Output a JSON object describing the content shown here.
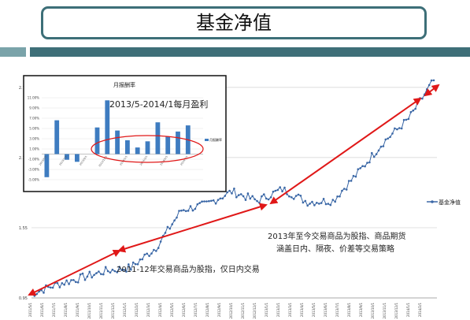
{
  "slide": {
    "title": "基金净值",
    "colors": {
      "frame": "#3d6f78",
      "deco_light": "#7aa3a9",
      "deco_dark": "#3e6f78",
      "series": "#3a67a6",
      "arrow": "#e01818",
      "ellipse": "#e01818"
    }
  },
  "chart_data": [
    {
      "type": "line",
      "title": "",
      "xlabel": "",
      "ylabel": "",
      "x": [
        "2011/5/1",
        "2011/7/1",
        "2011/9/1",
        "2011/11/1",
        "2012/1/1",
        "2012/3/1",
        "2012/5/1",
        "2012/7/1",
        "2012/9/1",
        "2012/11/1",
        "2013/1/1",
        "2013/3/1",
        "2013/5/1",
        "2013/7/1",
        "2013/9/1",
        "2013/11/1",
        "2014/1/1"
      ],
      "x_tick_labels": [
        "2011/5/1",
        "2011/6/1",
        "2011/7/1",
        "2011/8/1",
        "2011/9/1",
        "2011/10/1",
        "2011/11/1",
        "2011/12/1",
        "2012/1/1",
        "2012/2/1",
        "2012/3/1",
        "2012/4/1",
        "2012/5/1",
        "2012/6/1",
        "2012/7/1",
        "2012/8/1",
        "2012/9/1",
        "2012/10/1",
        "2012/11/1",
        "2012/12/1",
        "2013/1/1",
        "2013/2/1",
        "2013/3/1",
        "2013/4/1",
        "2013/5/1",
        "2013/6/1",
        "2013/7/1",
        "2013/8/1",
        "2013/9/1",
        "2013/10/1",
        "2013/11/1",
        "2013/12/1",
        "2014/1/1",
        "2014/2/1"
      ],
      "y_ticks": [
        "0.95",
        "1.55",
        "2.15",
        "2.75"
      ],
      "ylim": [
        0.95,
        2.85
      ],
      "series": [
        {
          "name": "基金净值",
          "values": [
            0.98,
            1.06,
            1.12,
            1.18,
            1.21,
            1.38,
            1.7,
            1.75,
            1.86,
            1.78,
            1.88,
            1.77,
            1.78,
            2.02,
            2.28,
            2.48,
            2.81
          ]
        }
      ],
      "legend": "right",
      "grid": true
    },
    {
      "type": "bar",
      "title": "月报酬率",
      "categories": [
        "2013/5",
        "2013/6",
        "2013/7",
        "2013/8",
        "2013/9",
        "2013/10",
        "2013/11",
        "2013/12",
        "2014/1",
        "2014/2",
        "2014/3",
        "2014/4",
        "2014/5",
        "2014/6",
        "2014/7",
        "2014/8"
      ],
      "category_tick_labels": [
        "2013/5/1",
        "",
        "2013/7/1",
        "",
        "2013/9/1",
        "",
        "2013/11/1",
        "",
        "2014/1/1",
        "",
        "2014/3/1",
        "",
        "2014/5/1",
        "",
        "2014/7/1",
        ""
      ],
      "y_ticks": [
        "11.00%",
        "9.00%",
        "7.00%",
        "5.00%",
        "3.00%",
        "1.00%",
        "-1.00%",
        "-3.00%",
        "-5.00%"
      ],
      "series": [
        {
          "name": "月报酬率",
          "values": [
            -4.5,
            6.6,
            -1.1,
            -1.5,
            0.0,
            5.2,
            10.5,
            4.6,
            2.7,
            1.3,
            2.5,
            6.2,
            3.4,
            4.4,
            5.6,
            0.0
          ]
        }
      ],
      "ylim": [
        -5,
        11
      ],
      "legend": "right",
      "grid": true
    }
  ],
  "annotations": {
    "monthly_profit": "2013/5-2014/1每月盈利",
    "period_2013": "2013年至今交易商品为股指、商品期货",
    "period_2013_line2": "涵盖日内、隔夜、价差等交易策略",
    "period_2011": "2011-12年交易商品为股指，仅日内交易"
  }
}
